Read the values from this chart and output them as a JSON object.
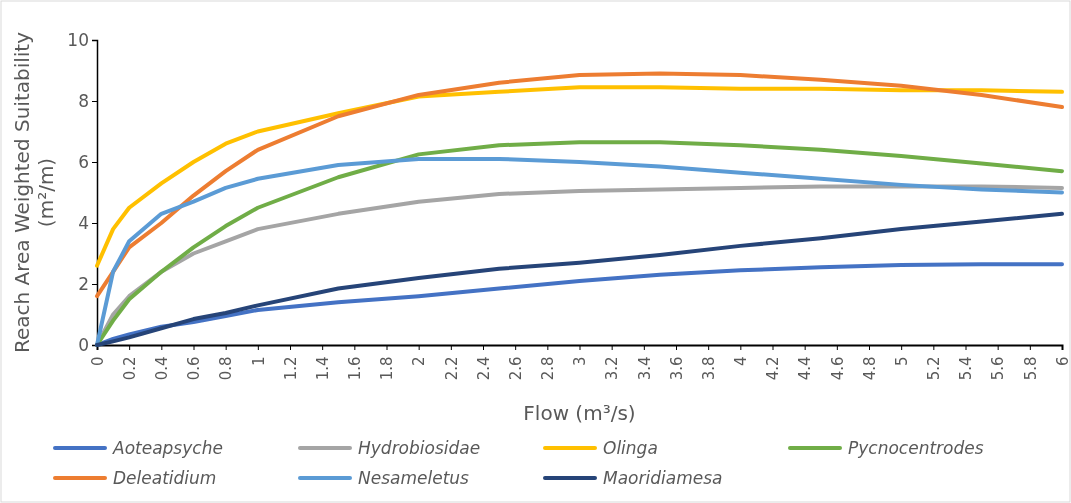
{
  "chart_data": {
    "type": "line",
    "xlabel": "Flow (m³/s)",
    "ylabel": "Reach Area Weighted Suitability (m²/m)",
    "x": [
      0,
      0.1,
      0.2,
      0.4,
      0.6,
      0.8,
      1,
      1.5,
      2,
      2.5,
      3,
      3.5,
      4,
      4.5,
      5,
      5.5,
      6
    ],
    "xlim": [
      0,
      6
    ],
    "xticks": [
      0,
      0.2,
      0.4,
      0.6,
      0.8,
      1,
      1.2,
      1.4,
      1.6,
      1.8,
      2,
      2.2,
      2.4,
      2.6,
      2.8,
      3,
      3.2,
      3.4,
      3.6,
      3.8,
      4,
      4.2,
      4.4,
      4.6,
      4.8,
      5,
      5.2,
      5.4,
      5.6,
      5.8,
      6
    ],
    "ylim": [
      0,
      10
    ],
    "yticks": [
      0,
      2,
      4,
      6,
      8,
      10
    ],
    "grid": false,
    "legend": "bottom",
    "line_style": "solid",
    "marker": "none",
    "series": [
      {
        "name": "Aoteapsyche",
        "color": "#4472c4",
        "values": [
          0,
          0.2,
          0.35,
          0.6,
          0.75,
          0.95,
          1.15,
          1.4,
          1.6,
          1.85,
          2.1,
          2.3,
          2.45,
          2.55,
          2.62,
          2.65,
          2.65
        ]
      },
      {
        "name": "Hydrobiosidae",
        "color": "#a5a5a5",
        "values": [
          0,
          1.0,
          1.6,
          2.4,
          3.0,
          3.4,
          3.8,
          4.3,
          4.7,
          4.95,
          5.05,
          5.1,
          5.15,
          5.2,
          5.2,
          5.2,
          5.15
        ]
      },
      {
        "name": "Olinga",
        "color": "#ffc000",
        "values": [
          2.6,
          3.8,
          4.5,
          5.3,
          6.0,
          6.6,
          7.0,
          7.6,
          8.15,
          8.3,
          8.45,
          8.45,
          8.4,
          8.4,
          8.35,
          8.35,
          8.3
        ]
      },
      {
        "name": "Pycnocentrodes",
        "color": "#70ad47",
        "values": [
          0,
          0.8,
          1.5,
          2.4,
          3.2,
          3.9,
          4.5,
          5.5,
          6.25,
          6.55,
          6.65,
          6.65,
          6.55,
          6.4,
          6.2,
          5.95,
          5.7
        ]
      },
      {
        "name": "Deleatidium",
        "color": "#ed7d31",
        "values": [
          1.6,
          2.4,
          3.2,
          4.0,
          4.9,
          5.7,
          6.4,
          7.5,
          8.2,
          8.6,
          8.85,
          8.9,
          8.85,
          8.7,
          8.5,
          8.2,
          7.8
        ]
      },
      {
        "name": "Nesameletus",
        "color": "#5b9bd5",
        "values": [
          0,
          2.4,
          3.4,
          4.3,
          4.7,
          5.15,
          5.45,
          5.9,
          6.1,
          6.1,
          6.0,
          5.85,
          5.65,
          5.45,
          5.25,
          5.1,
          5.0
        ]
      },
      {
        "name": "Maoridiamesa",
        "color": "#264478",
        "values": [
          0,
          0.12,
          0.25,
          0.55,
          0.85,
          1.05,
          1.3,
          1.85,
          2.2,
          2.5,
          2.7,
          2.95,
          3.25,
          3.5,
          3.8,
          4.05,
          4.3
        ]
      }
    ]
  }
}
